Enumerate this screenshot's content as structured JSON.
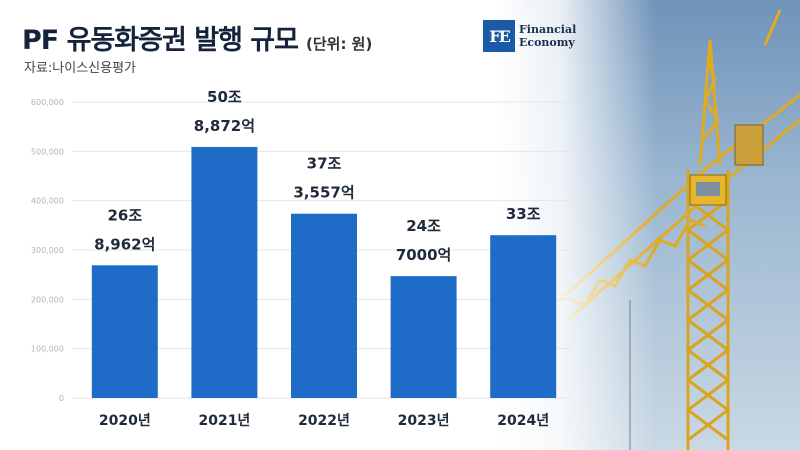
{
  "header": {
    "title": "PF 유동화증권 발행 규모",
    "unit": "(단위: 원)",
    "source": "자료:나이스신용평가"
  },
  "logo": {
    "mark": "FE",
    "line1": "Financial",
    "line2": "Economy",
    "color": "#1b5aa6"
  },
  "colors": {
    "bar": "#1e6bc8",
    "grid": "#e6e6e6"
  },
  "chart_data": {
    "type": "bar",
    "categories": [
      "2020년",
      "2021년",
      "2022년",
      "2023년",
      "2024년"
    ],
    "values": [
      268962,
      508872,
      373557,
      247000,
      330000
    ],
    "data_labels": [
      [
        "26조",
        "8,962억"
      ],
      [
        "50조",
        "8,872억"
      ],
      [
        "37조",
        "3,557억"
      ],
      [
        "24조",
        "7000억"
      ],
      [
        "33조"
      ]
    ],
    "y_ticks": [
      0,
      100000,
      200000,
      300000,
      400000,
      500000,
      600000
    ],
    "y_tick_labels": [
      "0",
      "100,000",
      "200,000",
      "300,000",
      "400,000",
      "500,000",
      "600,000"
    ],
    "ylim": [
      0,
      600000
    ],
    "title": "PF 유동화증권 발행 규모",
    "xlabel": "",
    "ylabel": "",
    "grid": true,
    "legend": "none"
  }
}
